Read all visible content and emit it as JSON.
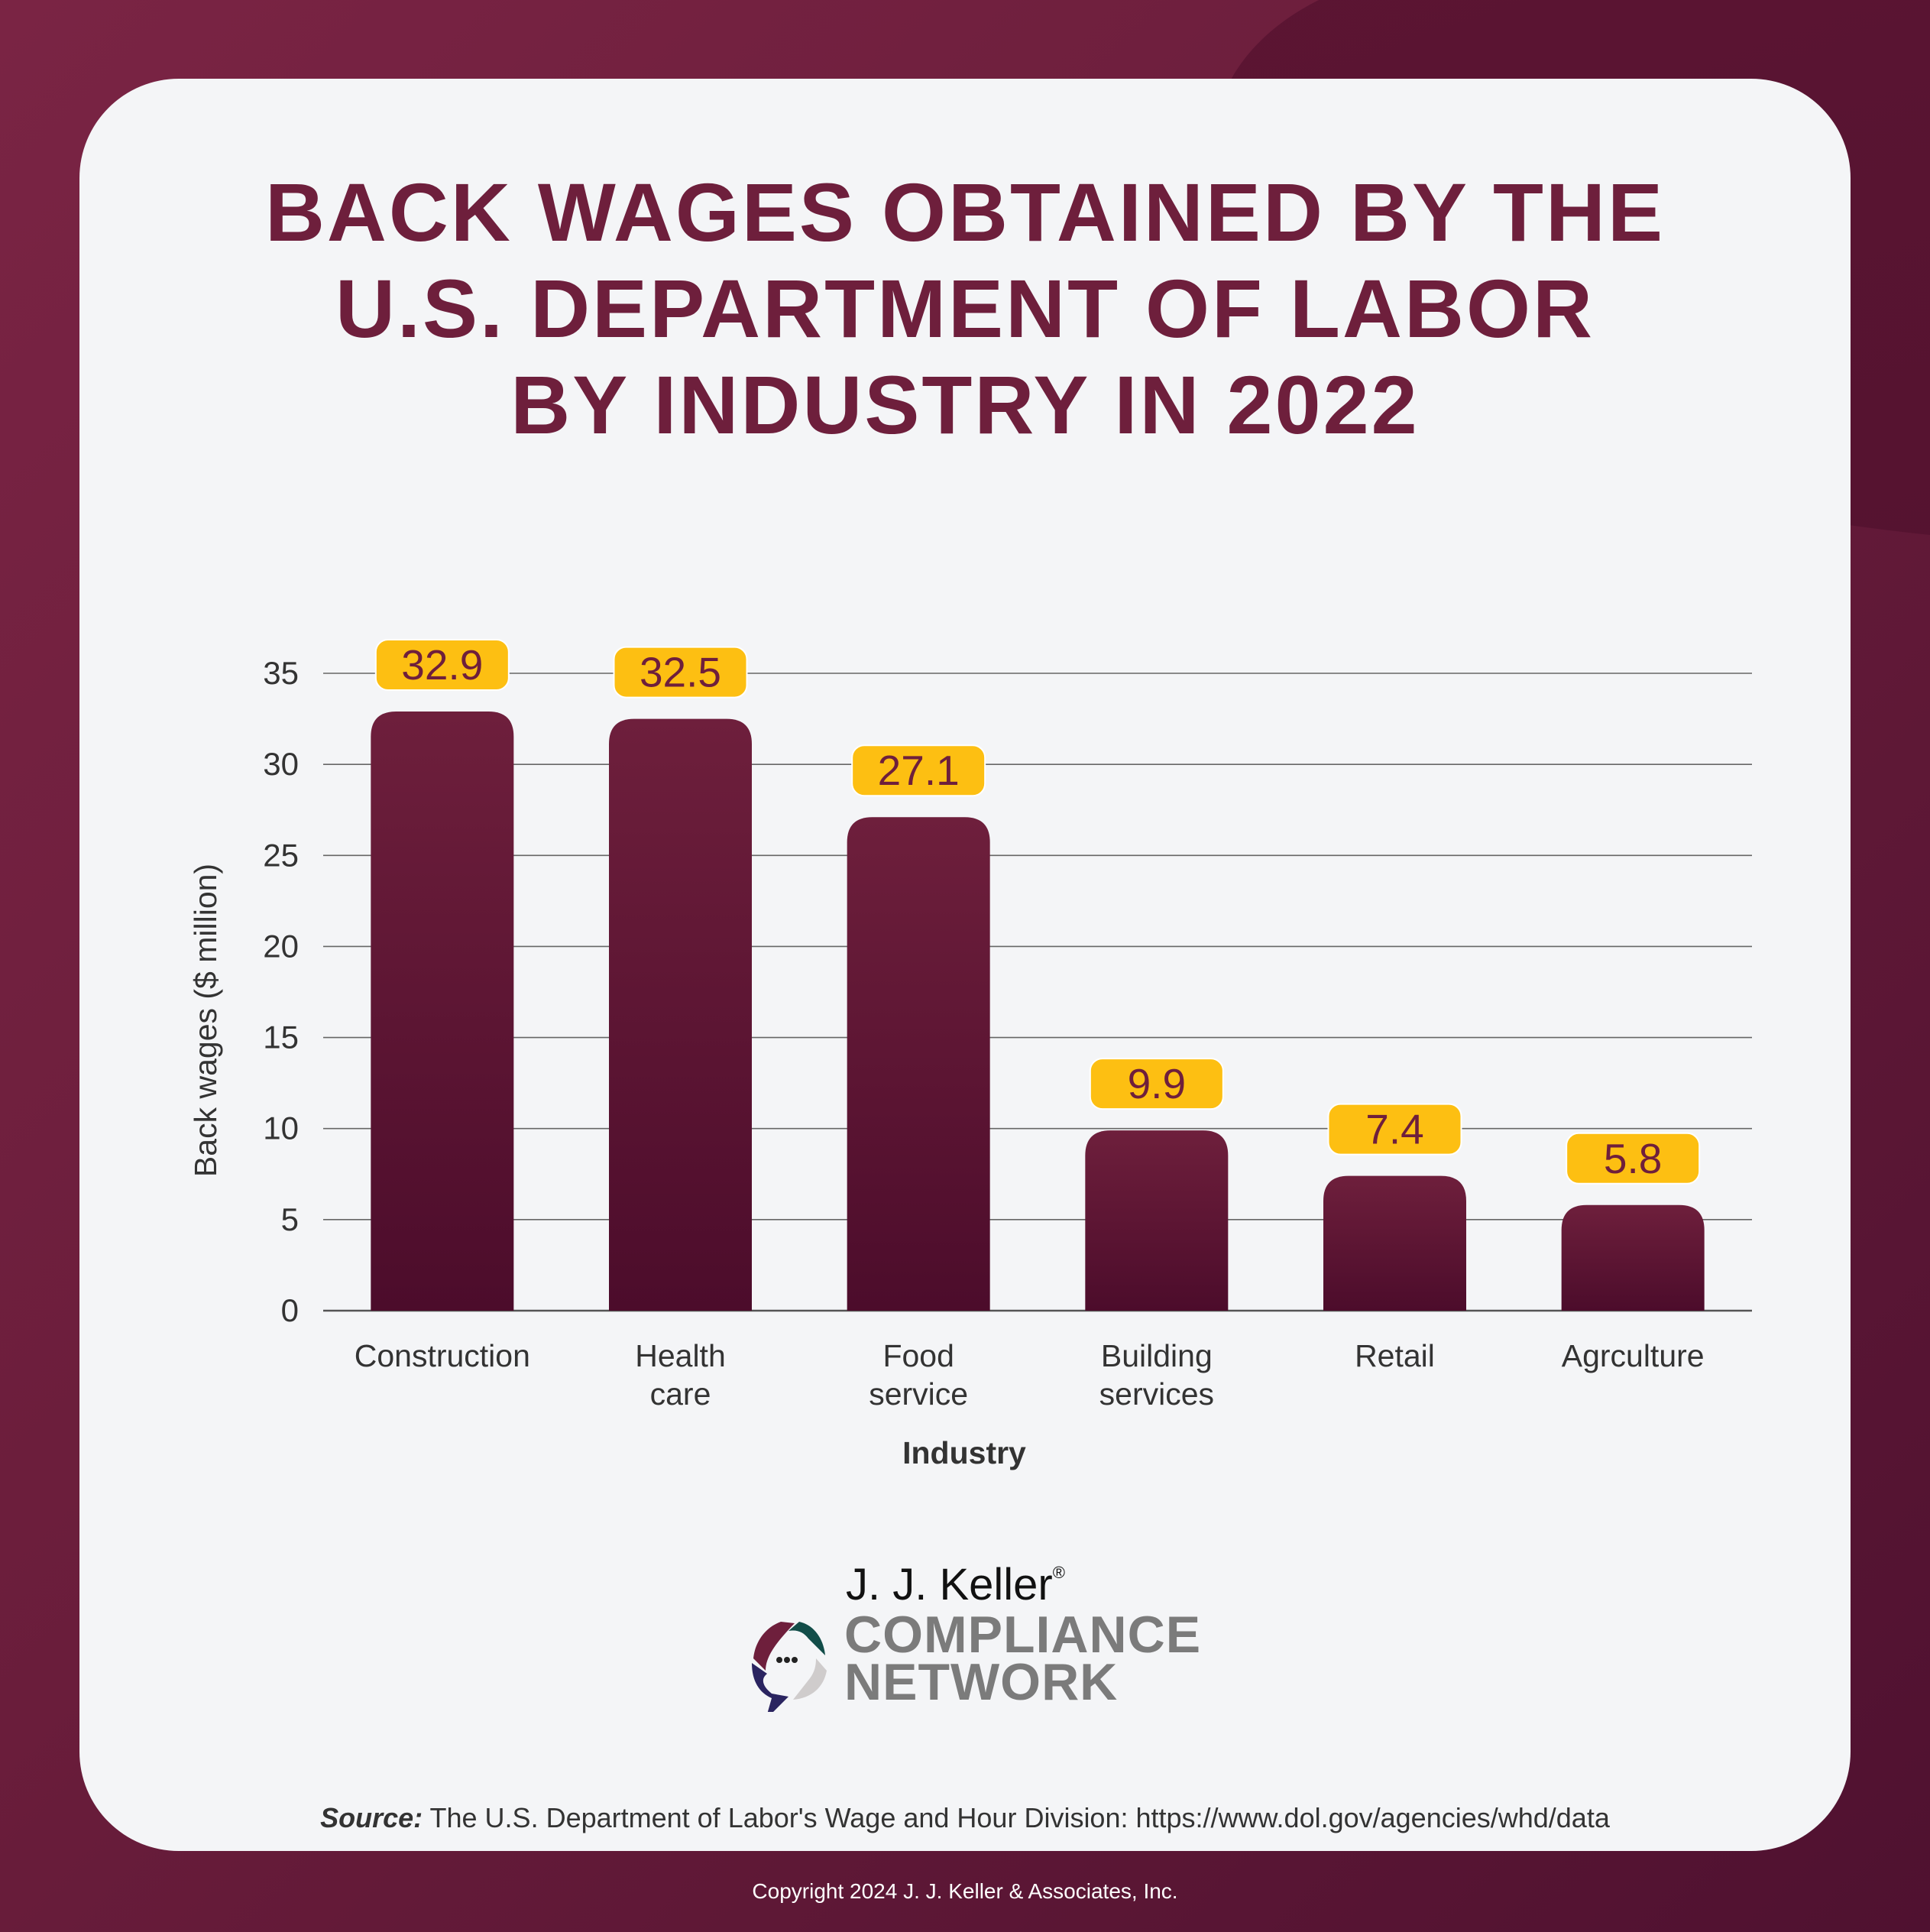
{
  "title_lines": [
    "BACK WAGES OBTAINED BY THE",
    "U.S. DEPARTMENT OF LABOR",
    "BY INDUSTRY IN 2022"
  ],
  "chart_data": {
    "type": "bar",
    "title": "BACK WAGES OBTAINED BY THE U.S. DEPARTMENT OF LABOR BY INDUSTRY IN 2022",
    "categories": [
      [
        "Construction"
      ],
      [
        "Health",
        "care"
      ],
      [
        "Food",
        "service"
      ],
      [
        "Building",
        "services"
      ],
      [
        "Retail"
      ],
      [
        "Agrculture"
      ]
    ],
    "values": [
      32.9,
      32.5,
      27.1,
      9.9,
      7.4,
      5.8
    ],
    "data_labels": [
      "32.9",
      "32.5",
      "27.1",
      "9.9",
      "7.4",
      "5.8"
    ],
    "xlabel": "Industry",
    "ylabel": "Back wages ($ million)",
    "ylim": [
      0,
      35
    ],
    "yticks": [
      0,
      5,
      10,
      15,
      20,
      25,
      30,
      35
    ],
    "grid": true,
    "colors": {
      "bar_top": "#6e1f3c",
      "bar_bottom": "#4c0c2b",
      "label_bg": "#fdbf12",
      "label_text": "#6e1f3c"
    }
  },
  "logo": {
    "brand": "J. J. Keller",
    "registered": "®",
    "line1": "COMPLIANCE",
    "line2": "NETWORK"
  },
  "source": {
    "label": "Source:",
    "text": " The U.S. Department of Labor's Wage and Hour Division: https://www.dol.gov/agencies/whd/data"
  },
  "copyright": "Copyright 2024 J. J. Keller & Associates, Inc."
}
